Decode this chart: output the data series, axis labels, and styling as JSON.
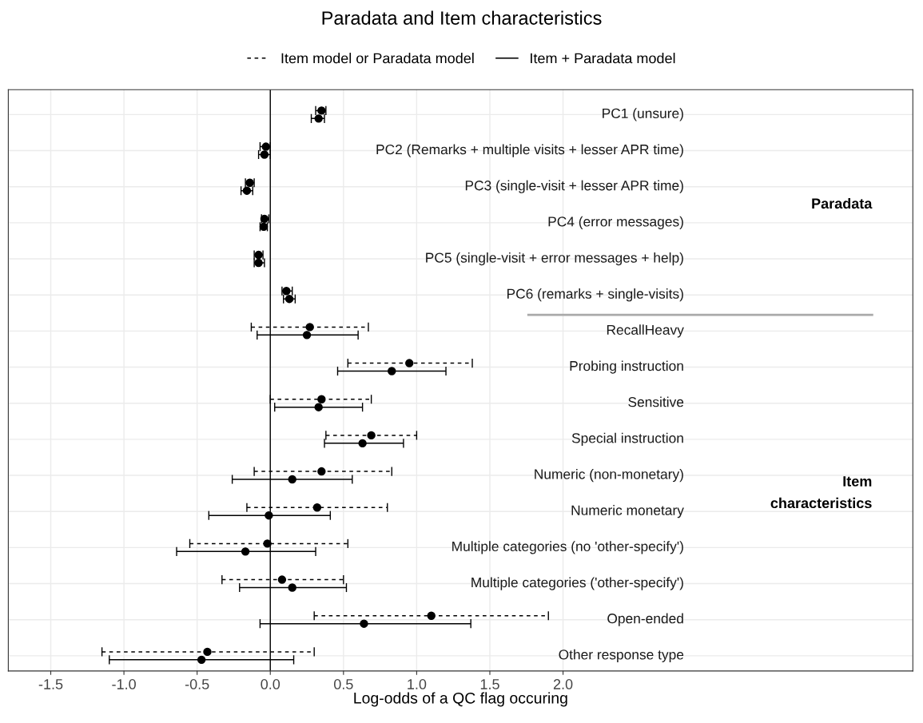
{
  "chart_data": {
    "type": "scatter",
    "orientation": "horizontal",
    "title": "Paradata and Item characteristics",
    "xlabel": "Log-odds of a QC flag occuring",
    "categories": [
      "PC1 (unsure)",
      "PC2 (Remarks + multiple visits + lesser APR time)",
      "PC3 (single-visit + lesser APR time)",
      "PC4 (error messages)",
      "PC5 (single-visit + error messages + help)",
      "PC6 (remarks + single-visits)",
      "RecallHeavy",
      "Probing instruction",
      "Sensitive",
      "Special instruction",
      "Numeric (non-monetary)",
      "Numeric monetary",
      "Multiple categories (no 'other-specify')",
      "Multiple categories ('other-specify')",
      "Open-ended",
      "Other response type"
    ],
    "series": [
      {
        "name": "Item model or Paradata model",
        "color": "#000000",
        "line_style": "dashed",
        "values": [
          0.35,
          -0.03,
          -0.14,
          -0.04,
          -0.08,
          0.11,
          0.27,
          0.95,
          0.35,
          0.69,
          0.35,
          0.32,
          -0.02,
          0.08,
          1.1,
          -0.43
        ],
        "errors": [
          [
            0.31,
            0.38
          ],
          [
            -0.07,
            0.0
          ],
          [
            -0.17,
            -0.11
          ],
          [
            -0.06,
            -0.01
          ],
          [
            -0.11,
            -0.05
          ],
          [
            0.08,
            0.15
          ],
          [
            -0.13,
            0.67
          ],
          [
            0.53,
            1.38
          ],
          [
            0.0,
            0.69
          ],
          [
            0.38,
            1.0
          ],
          [
            -0.11,
            0.83
          ],
          [
            -0.16,
            0.8
          ],
          [
            -0.55,
            0.53
          ],
          [
            -0.33,
            0.5
          ],
          [
            0.3,
            1.9
          ],
          [
            -1.15,
            0.3
          ]
        ]
      },
      {
        "name": "Item + Paradata model",
        "color": "#000000",
        "line_style": "solid",
        "values": [
          0.33,
          -0.04,
          -0.16,
          -0.045,
          -0.08,
          0.13,
          0.25,
          0.83,
          0.33,
          0.63,
          0.15,
          -0.01,
          -0.17,
          0.15,
          0.64,
          -0.47
        ],
        "errors": [
          [
            0.28,
            0.37
          ],
          [
            -0.08,
            0.0
          ],
          [
            -0.2,
            -0.12
          ],
          [
            -0.07,
            -0.02
          ],
          [
            -0.11,
            -0.04
          ],
          [
            0.09,
            0.17
          ],
          [
            -0.09,
            0.6
          ],
          [
            0.46,
            1.2
          ],
          [
            0.03,
            0.63
          ],
          [
            0.37,
            0.91
          ],
          [
            -0.26,
            0.56
          ],
          [
            -0.42,
            0.41
          ],
          [
            -0.64,
            0.31
          ],
          [
            -0.21,
            0.52
          ],
          [
            -0.07,
            1.37
          ],
          [
            -1.1,
            0.16
          ]
        ]
      }
    ],
    "xlim": [
      -1.79,
      4.39
    ],
    "xticks": [
      {
        "value": -1.5,
        "label": "-1.5"
      },
      {
        "value": -1.0,
        "label": "-1.0"
      },
      {
        "value": -0.5,
        "label": "-0.5"
      },
      {
        "value": 0.0,
        "label": "0.0"
      },
      {
        "value": 0.5,
        "label": "0.5"
      },
      {
        "value": 1.0,
        "label": "1.0"
      },
      {
        "value": 1.5,
        "label": "1.5"
      },
      {
        "value": 2.0,
        "label": "2.0"
      }
    ],
    "ref_lines": [
      {
        "axis": "x",
        "value": 0,
        "color": "#000000",
        "line_style": "solid"
      }
    ],
    "annotations": [
      "Paradata",
      "Item\ncharacteristics"
    ],
    "tick_labels": "x",
    "grid": true,
    "legend": "top",
    "marker": "circle"
  }
}
